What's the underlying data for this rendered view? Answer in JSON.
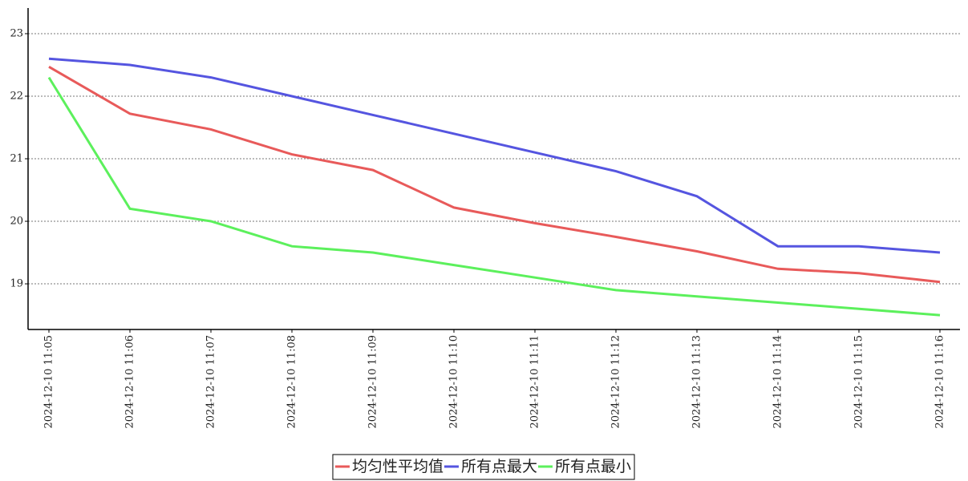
{
  "chart_data": {
    "type": "line",
    "categories": [
      "2024-12-10 11:05",
      "2024-12-10 11:06",
      "2024-12-10 11:07",
      "2024-12-10 11:08",
      "2024-12-10 11:09",
      "2024-12-10 11:10",
      "2024-12-10 11:11",
      "2024-12-10 11:12",
      "2024-12-10 11:13",
      "2024-12-10 11:14",
      "2024-12-10 11:15",
      "2024-12-10 11:16"
    ],
    "series": [
      {
        "name": "均匀性平均值",
        "color": "#e85a5a",
        "values": [
          22.47,
          21.72,
          21.47,
          21.07,
          20.82,
          20.22,
          19.97,
          19.75,
          19.52,
          19.24,
          19.17,
          19.03
        ]
      },
      {
        "name": "所有点最大",
        "color": "#5555e0",
        "values": [
          22.6,
          22.5,
          22.3,
          22.0,
          21.7,
          21.4,
          21.1,
          20.8,
          20.4,
          19.6,
          19.6,
          19.5
        ]
      },
      {
        "name": "所有点最小",
        "color": "#5cf05c",
        "values": [
          22.3,
          20.2,
          20.0,
          19.6,
          19.5,
          19.3,
          19.1,
          18.9,
          18.8,
          18.7,
          18.6,
          18.5
        ]
      }
    ],
    "ylim": [
      18.27,
      23.41
    ],
    "yticks": [
      19,
      20,
      21,
      22,
      23
    ],
    "grid": true,
    "legend": "bottom"
  }
}
